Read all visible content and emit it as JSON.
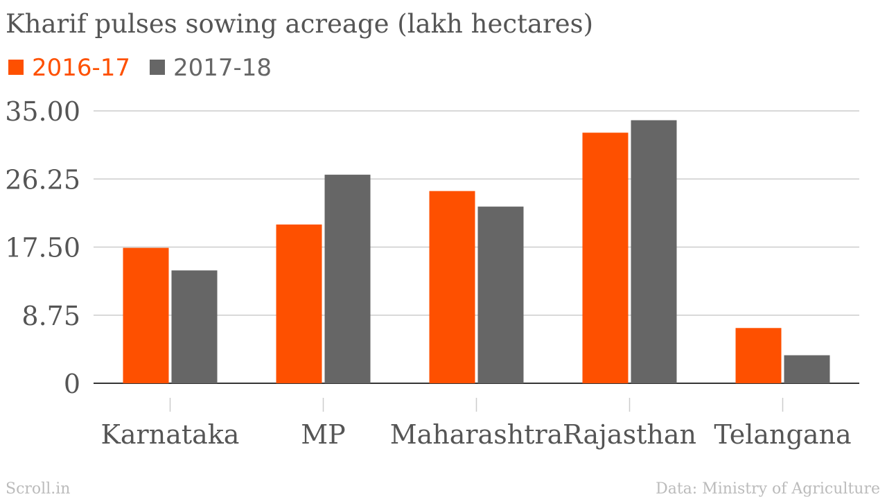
{
  "chart_data": {
    "type": "bar",
    "title": "Kharif pulses sowing acreage (lakh hectares)",
    "categories": [
      "Karnataka",
      "MP",
      "Maharashtra",
      "Rajasthan",
      "Telangana"
    ],
    "series": [
      {
        "name": "2016-17",
        "values": [
          17.4,
          20.4,
          24.7,
          32.2,
          7.1
        ],
        "color": "#fe5000"
      },
      {
        "name": "2017-18",
        "values": [
          14.5,
          26.8,
          22.7,
          33.8,
          3.6
        ],
        "color": "#666666"
      }
    ],
    "yticks": [
      "0",
      "8.75",
      "17.50",
      "26.25",
      "35.00"
    ],
    "ytick_values": [
      0,
      8.75,
      17.5,
      26.25,
      35
    ],
    "ylim": [
      0,
      35
    ],
    "grid": true,
    "legend_position": "top-left"
  },
  "footer": {
    "left": "Scroll.in",
    "right": "Data: Ministry of Agriculture"
  },
  "colors": {
    "title": "#555555",
    "axis_text": "#555555",
    "grid": "#cccccc",
    "axis_line": "#333333",
    "footer": "#bbbbbb"
  }
}
